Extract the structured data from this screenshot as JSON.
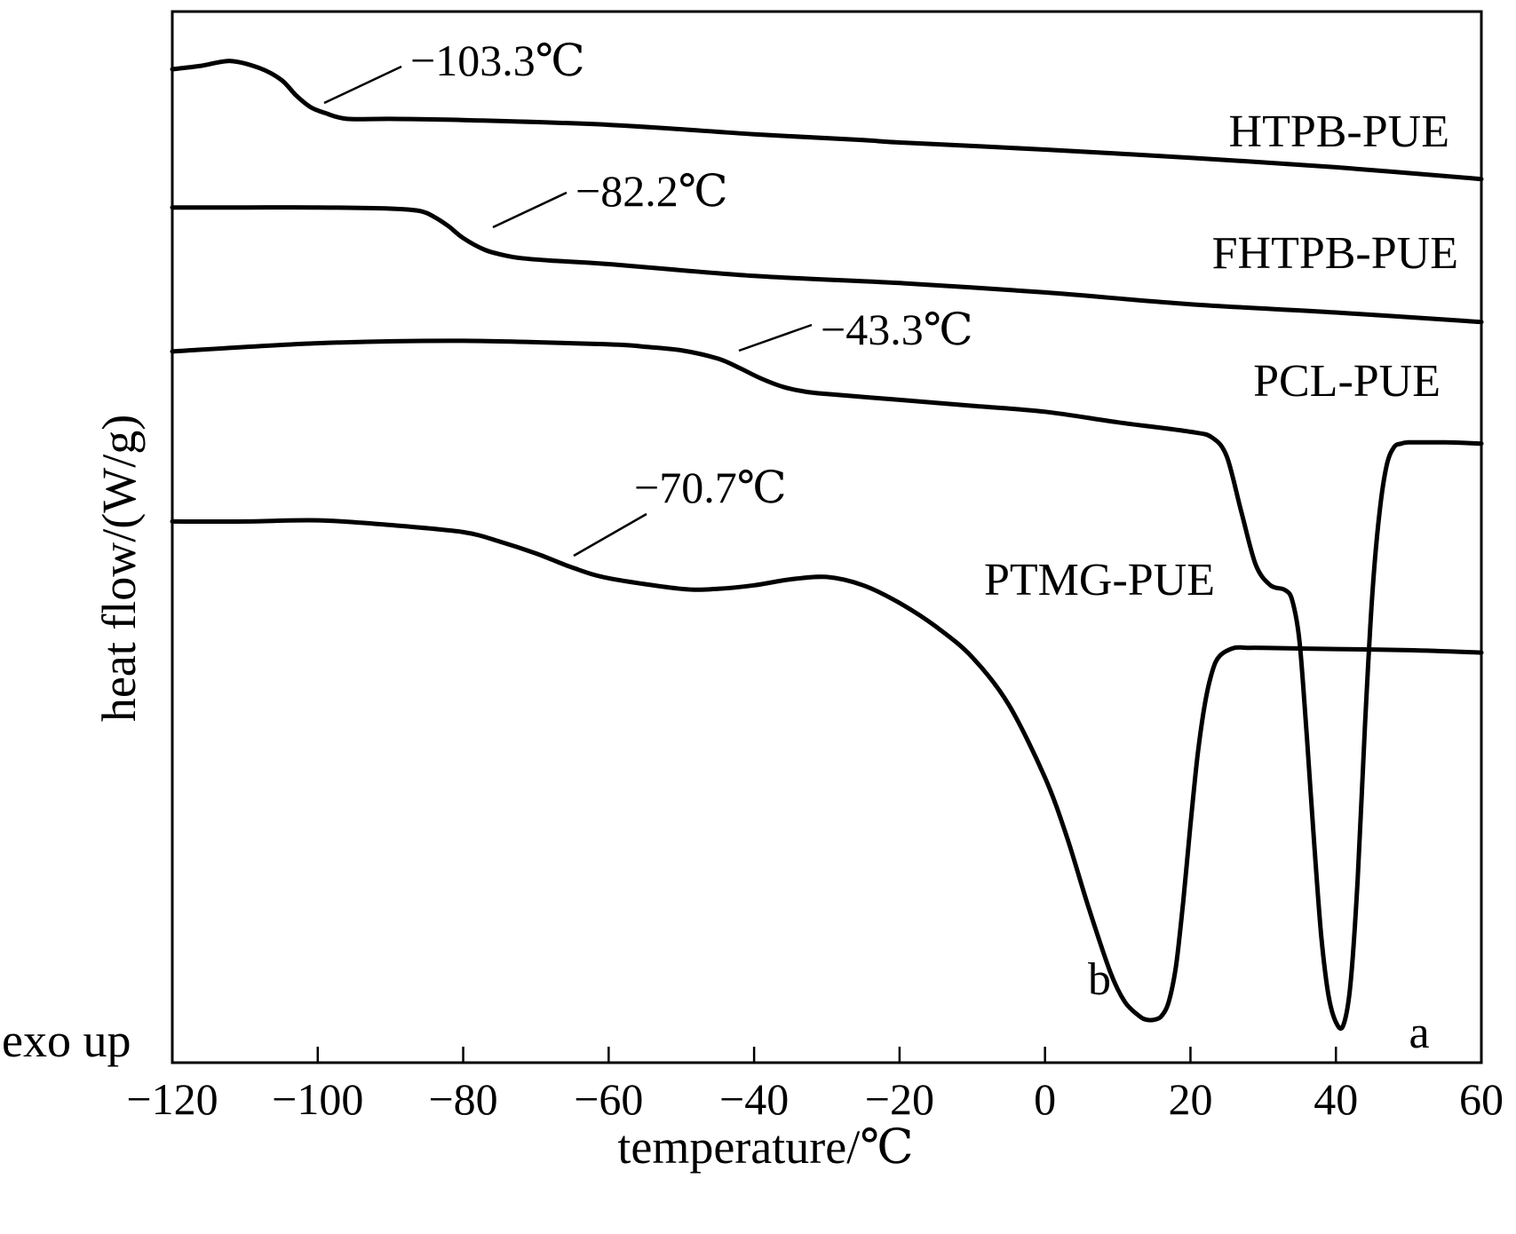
{
  "chart_data": {
    "type": "line",
    "title": "",
    "xlabel": "temperature/℃",
    "ylabel": "heat flow/(W/g)",
    "xlim": [
      -120,
      60
    ],
    "xticks": [
      -120,
      -100,
      -80,
      -60,
      -40,
      -20,
      0,
      20,
      40,
      60
    ],
    "xtick_labels": [
      "−120",
      "−100",
      "−80",
      "−60",
      "−40",
      "−20",
      "0",
      "20",
      "40",
      "60"
    ],
    "exo_label": "exo up",
    "y_units": "arbitrary (curves offset vertically)",
    "series": [
      {
        "name": "HTPB-PUE",
        "tg_label": "−103.3℃",
        "tg": -103.3,
        "x": [
          -120,
          -116,
          -112,
          -108,
          -105,
          -103,
          -101,
          -99,
          -96,
          -90,
          -80,
          -60,
          -40,
          -25,
          -20,
          0,
          20,
          40,
          60
        ],
        "y": [
          81.5,
          81.8,
          82.2,
          81.6,
          80.6,
          79.3,
          78.3,
          77.8,
          77.3,
          77.3,
          77.2,
          76.8,
          76.0,
          75.5,
          75.3,
          74.7,
          74.0,
          73.2,
          72.2
        ]
      },
      {
        "name": "FHTPB-PUE",
        "tg_label": "−82.2℃",
        "tg": -82.2,
        "x": [
          -120,
          -110,
          -100,
          -90,
          -86,
          -84,
          -82,
          -80,
          -77,
          -74,
          -72,
          -68,
          -60,
          -40,
          -20,
          0,
          20,
          40,
          60
        ],
        "y": [
          69.8,
          69.8,
          69.8,
          69.7,
          69.5,
          69.0,
          68.2,
          67.2,
          66.2,
          65.7,
          65.5,
          65.3,
          65.0,
          64.0,
          63.4,
          62.6,
          61.6,
          60.9,
          60.1
        ]
      },
      {
        "name": "PCL-PUE",
        "tg_label": "−43.3℃",
        "tg": -43.3,
        "marker_label": "a",
        "x": [
          -120,
          -100,
          -80,
          -60,
          -55,
          -50,
          -45,
          -42,
          -39,
          -36,
          -33,
          -30,
          -20,
          -10,
          0,
          10,
          20,
          23,
          25,
          27,
          29,
          31,
          33,
          34,
          35,
          36,
          37,
          38,
          39,
          40,
          41,
          42,
          43,
          44,
          45,
          46,
          47,
          48,
          49,
          50,
          52,
          55,
          60
        ],
        "y": [
          57.6,
          58.3,
          58.5,
          58.2,
          58.0,
          57.7,
          57.0,
          56.2,
          55.3,
          54.6,
          54.2,
          54.0,
          53.5,
          53.0,
          52.5,
          51.6,
          50.8,
          50.3,
          48.7,
          44.0,
          39.5,
          37.8,
          37.4,
          36.5,
          33.0,
          25.0,
          16.0,
          8.0,
          3.0,
          0.8,
          0.5,
          4.0,
          13.0,
          26.0,
          37.0,
          44.0,
          48.0,
          49.5,
          49.8,
          49.9,
          49.9,
          49.9,
          49.8
        ]
      },
      {
        "name": "PTMG-PUE",
        "tg_label": "−70.7℃",
        "tg": -70.7,
        "marker_label": "b",
        "x": [
          -120,
          -110,
          -100,
          -90,
          -80,
          -75,
          -70,
          -65,
          -60,
          -50,
          -45,
          -40,
          -35,
          -30,
          -25,
          -20,
          -15,
          -10,
          -5,
          0,
          3,
          6,
          9,
          11,
          13,
          14,
          15,
          16,
          17,
          18,
          19,
          20,
          21,
          22,
          23,
          24,
          26,
          28,
          30,
          40,
          50,
          60
        ],
        "y": [
          43.2,
          43.2,
          43.3,
          42.9,
          42.3,
          41.5,
          40.5,
          39.3,
          38.4,
          37.5,
          37.5,
          37.8,
          38.3,
          38.5,
          37.8,
          36.3,
          34.3,
          31.7,
          27.7,
          21.5,
          16.5,
          10.5,
          5.0,
          2.5,
          1.3,
          1.0,
          1.0,
          1.3,
          2.5,
          5.5,
          11.0,
          17.5,
          23.5,
          27.8,
          30.5,
          31.8,
          32.5,
          32.5,
          32.5,
          32.4,
          32.3,
          32.1
        ]
      }
    ]
  }
}
